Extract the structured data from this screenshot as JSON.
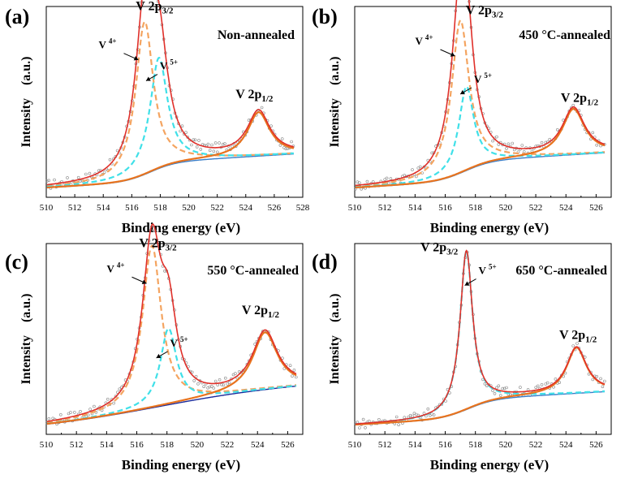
{
  "figure": {
    "colors": {
      "envelope": "#e0302a",
      "v4": "#f4a460",
      "v5": "#40e0e8",
      "p12_fit": "#e8731e",
      "background": "#3a7ec8",
      "background_c": "#1a2a9a",
      "points": "#888888"
    }
  },
  "chart_data": [
    {
      "type": "line",
      "panel": "(a)",
      "title": "Non-annealed",
      "xlabel": "Binding energy (eV)",
      "ylabel": "Intensity　(a.u.)",
      "xlim": [
        510,
        528
      ],
      "x_ticks": [
        "510",
        "512",
        "514",
        "516",
        "518",
        "520",
        "522",
        "524",
        "526",
        "528"
      ],
      "peak_labels": [
        {
          "base": "V 2p",
          "sub": "3/2",
          "x": 517.6,
          "y": 0.98
        },
        {
          "base": "V 2p",
          "sub": "1/2",
          "x": 524.6,
          "y": 0.52
        }
      ],
      "species_labels": [
        {
          "base": "V",
          "sup": "4+",
          "x": 514.3,
          "y": 0.78
        },
        {
          "base": "V",
          "sup": "5+",
          "x": 518.6,
          "y": 0.67
        }
      ],
      "background": {
        "start": 0.05,
        "end": 0.23,
        "center": 517.3,
        "width": 0.9
      },
      "components": [
        {
          "name": "V 4+",
          "series": "v4",
          "center": 516.9,
          "height": 0.8,
          "width": 0.75
        },
        {
          "name": "V 5+",
          "series": "v5",
          "center": 517.9,
          "height": 0.58,
          "width": 0.75
        },
        {
          "name": "V 2p1/2",
          "series": "p12",
          "center": 524.9,
          "height": 0.23,
          "width": 0.95
        }
      ]
    },
    {
      "type": "line",
      "panel": "(b)",
      "title": "450 °C-annealed",
      "xlabel": "Binding energy (eV)",
      "ylabel": "Intensity　(a.u.)",
      "xlim": [
        510,
        527
      ],
      "x_ticks": [
        "510",
        "512",
        "514",
        "516",
        "518",
        "520",
        "522",
        "524",
        "526"
      ],
      "peak_labels": [
        {
          "base": "V 2p",
          "sub": "3/2",
          "x": 518.6,
          "y": 0.96
        },
        {
          "base": "V 2p",
          "sub": "1/2",
          "x": 524.9,
          "y": 0.5
        }
      ],
      "species_labels": [
        {
          "base": "V",
          "sup": "4+",
          "x": 514.6,
          "y": 0.8
        },
        {
          "base": "V",
          "sup": "5+",
          "x": 518.5,
          "y": 0.6
        }
      ],
      "background": {
        "start": 0.05,
        "end": 0.24,
        "center": 517.3,
        "width": 0.9
      },
      "components": [
        {
          "name": "V 4+",
          "series": "v4",
          "center": 517.0,
          "height": 0.8,
          "width": 0.7
        },
        {
          "name": "V 5+",
          "series": "v5",
          "center": 517.4,
          "height": 0.44,
          "width": 0.6
        },
        {
          "name": "V 2p1/2",
          "series": "p12",
          "center": 524.5,
          "height": 0.24,
          "width": 0.9
        }
      ]
    },
    {
      "type": "line",
      "panel": "(c)",
      "title": "550 °C-annealed",
      "xlabel": "Binding energy (eV)",
      "ylabel": "Intensity　(a.u.)",
      "xlim": [
        510,
        527
      ],
      "x_ticks": [
        "510",
        "512",
        "514",
        "516",
        "518",
        "520",
        "522",
        "524",
        "526"
      ],
      "peak_labels": [
        {
          "base": "V 2p",
          "sub": "3/2",
          "x": 517.4,
          "y": 0.98
        },
        {
          "base": "V 2p",
          "sub": "1/2",
          "x": 524.2,
          "y": 0.63
        }
      ],
      "species_labels": [
        {
          "base": "V",
          "sup": "4+",
          "x": 514.6,
          "y": 0.85
        },
        {
          "base": "V",
          "sup": "5+",
          "x": 518.8,
          "y": 0.46
        }
      ],
      "background": {
        "start": 0.04,
        "end": 0.27,
        "center": 517.5,
        "width": 3.5
      },
      "components": [
        {
          "name": "V 4+",
          "series": "v4",
          "center": 517.0,
          "height": 0.85,
          "width": 0.75
        },
        {
          "name": "V 5+",
          "series": "v5",
          "center": 518.1,
          "height": 0.4,
          "width": 0.65
        },
        {
          "name": "V 2p1/2",
          "series": "p12",
          "center": 524.5,
          "height": 0.3,
          "width": 1.0
        }
      ]
    },
    {
      "type": "line",
      "panel": "(d)",
      "title": "650 °C-annealed",
      "xlabel": "Binding energy (eV)",
      "ylabel": "Intensity　(a.u.)",
      "xlim": [
        510,
        527
      ],
      "x_ticks": [
        "510",
        "512",
        "514",
        "516",
        "518",
        "520",
        "522",
        "524",
        "526"
      ],
      "peak_labels": [
        {
          "base": "V 2p",
          "sub": "3/2",
          "x": 515.6,
          "y": 0.96
        },
        {
          "base": "V 2p",
          "sub": "1/2",
          "x": 524.8,
          "y": 0.5
        }
      ],
      "species_labels": [
        {
          "base": "V",
          "sup": "5+",
          "x": 518.8,
          "y": 0.84
        }
      ],
      "background": {
        "start": 0.05,
        "end": 0.23,
        "center": 517.5,
        "width": 0.9
      },
      "components": [
        {
          "name": "V 5+",
          "series": "v5",
          "center": 517.4,
          "height": 0.83,
          "width": 0.5
        },
        {
          "name": "V 2p1/2",
          "series": "p12",
          "center": 524.7,
          "height": 0.24,
          "width": 0.8
        }
      ]
    }
  ]
}
